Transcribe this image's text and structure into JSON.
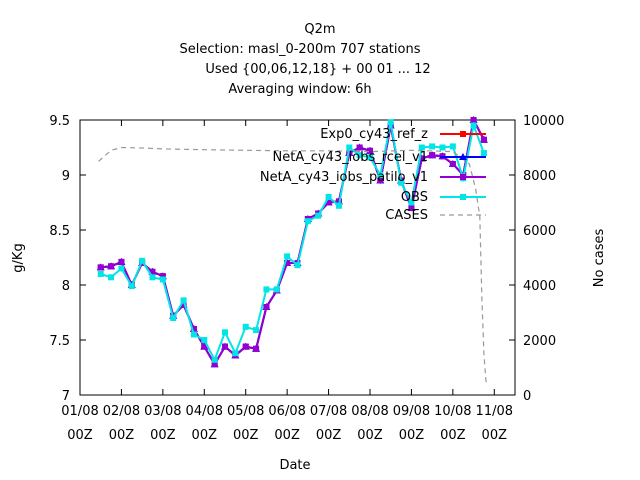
{
  "chart_data": {
    "type": "line",
    "title": "Q2m",
    "subtitle_lines": [
      "Selection: masl_0-200m    707 stations",
      "Used {00,06,12,18} + 00 01 ... 12",
      "Averaging window:  6h"
    ],
    "xlabel": "Date",
    "ylabel": "g/Kg",
    "y2label": "No cases",
    "xlim": [
      0,
      10.5
    ],
    "ylim": [
      7,
      9.5
    ],
    "y2lim": [
      0,
      10000
    ],
    "xticks": [
      {
        "x": 0,
        "line1": "01/08",
        "line2": "00Z"
      },
      {
        "x": 1,
        "line1": "02/08",
        "line2": "00Z"
      },
      {
        "x": 2,
        "line1": "03/08",
        "line2": "00Z"
      },
      {
        "x": 3,
        "line1": "04/08",
        "line2": "00Z"
      },
      {
        "x": 4,
        "line1": "05/08",
        "line2": "00Z"
      },
      {
        "x": 5,
        "line1": "06/08",
        "line2": "00Z"
      },
      {
        "x": 6,
        "line1": "07/08",
        "line2": "00Z"
      },
      {
        "x": 7,
        "line1": "08/08",
        "line2": "00Z"
      },
      {
        "x": 8,
        "line1": "09/08",
        "line2": "00Z"
      },
      {
        "x": 9,
        "line1": "10/08",
        "line2": "00Z"
      },
      {
        "x": 10,
        "line1": "11/08",
        "line2": "00Z"
      }
    ],
    "yticks": [
      "7",
      "7.5",
      "8",
      "8.5",
      "9",
      "9.5"
    ],
    "y2ticks": [
      "0",
      "2000",
      "4000",
      "6000",
      "8000",
      "10000"
    ],
    "legend_position": "top-right",
    "series": [
      {
        "name": "Exp0_cy43_ref_z",
        "color": "#ff0000",
        "marker": "filled-square",
        "axis": "y",
        "x": [
          0.5,
          0.75,
          1,
          1.25,
          1.5,
          1.75,
          2,
          2.25,
          2.5,
          2.75,
          3,
          3.25,
          3.5,
          3.75,
          4,
          4.25,
          4.5,
          4.75,
          5,
          5.25,
          5.5,
          5.75,
          6,
          6.25,
          6.5,
          6.75,
          7,
          7.25,
          7.5,
          7.75,
          8,
          8.25,
          8.5,
          8.75,
          9,
          9.25,
          9.5,
          9.75,
          10
        ],
        "values": [
          8.16,
          8.17,
          8.21,
          8.0,
          8.2,
          8.12,
          8.08,
          7.72,
          7.82,
          7.6,
          7.44,
          7.28,
          7.44,
          7.36,
          7.44,
          7.42,
          7.8,
          7.95,
          8.2,
          8.2,
          8.6,
          8.65,
          8.75,
          8.76,
          9.2,
          9.25,
          9.22,
          8.95,
          9.45,
          8.95,
          8.7,
          9.15,
          9.18,
          9.17,
          9.1,
          9.0,
          9.5,
          9.32,
          null
        ]
      },
      {
        "name": "NetA_cy43_iobs_rcel_v1",
        "color": "#0000ff",
        "marker": "filled-triangle",
        "axis": "y",
        "x": [
          0.5,
          0.75,
          1,
          1.25,
          1.5,
          1.75,
          2,
          2.25,
          2.5,
          2.75,
          3,
          3.25,
          3.5,
          3.75,
          4,
          4.25,
          4.5,
          4.75,
          5,
          5.25,
          5.5,
          5.75,
          6,
          6.25,
          6.5,
          6.75,
          7,
          7.25,
          7.5,
          7.75,
          8,
          8.25,
          8.5,
          8.75,
          9,
          9.25,
          9.5,
          9.75,
          10
        ],
        "values": [
          8.16,
          8.17,
          8.21,
          8.0,
          8.2,
          8.12,
          8.08,
          7.72,
          7.82,
          7.6,
          7.44,
          7.28,
          7.44,
          7.36,
          7.44,
          7.42,
          7.8,
          7.95,
          8.2,
          8.2,
          8.6,
          8.65,
          8.75,
          8.76,
          9.2,
          9.25,
          9.22,
          8.95,
          9.45,
          8.95,
          8.7,
          9.15,
          9.18,
          9.17,
          9.1,
          9.0,
          9.5,
          9.32,
          null
        ]
      },
      {
        "name": "NetA_cy43_iobs_patilo_v1",
        "color": "#9400d3",
        "marker": "filled-square",
        "axis": "y",
        "x": [
          0.5,
          0.75,
          1,
          1.25,
          1.5,
          1.75,
          2,
          2.25,
          2.5,
          2.75,
          3,
          3.25,
          3.5,
          3.75,
          4,
          4.25,
          4.5,
          4.75,
          5,
          5.25,
          5.5,
          5.75,
          6,
          6.25,
          6.5,
          6.75,
          7,
          7.25,
          7.5,
          7.75,
          8,
          8.25,
          8.5,
          8.75,
          9,
          9.25,
          9.5,
          9.75,
          10
        ],
        "values": [
          8.16,
          8.17,
          8.21,
          8.0,
          8.2,
          8.12,
          8.08,
          7.72,
          7.82,
          7.6,
          7.44,
          7.28,
          7.44,
          7.36,
          7.44,
          7.42,
          7.8,
          7.95,
          8.2,
          8.2,
          8.6,
          8.65,
          8.75,
          8.76,
          9.2,
          9.25,
          9.22,
          8.95,
          9.45,
          8.95,
          8.7,
          9.15,
          9.18,
          9.17,
          9.1,
          9.0,
          9.5,
          9.32,
          null
        ]
      },
      {
        "name": "OBS",
        "color": "#00e5e5",
        "marker": "filled-square",
        "axis": "y",
        "x": [
          0.5,
          0.75,
          1,
          1.25,
          1.5,
          1.75,
          2,
          2.25,
          2.5,
          2.75,
          3,
          3.25,
          3.5,
          3.75,
          4,
          4.25,
          4.5,
          4.75,
          5,
          5.25,
          5.5,
          5.75,
          6,
          6.25,
          6.5,
          6.75,
          7,
          7.25,
          7.5,
          7.75,
          8,
          8.25,
          8.5,
          8.75,
          9,
          9.25,
          9.5,
          9.75,
          10
        ],
        "values": [
          8.1,
          8.07,
          8.15,
          7.99,
          8.22,
          8.07,
          8.05,
          7.7,
          7.86,
          7.55,
          7.5,
          7.32,
          7.57,
          7.38,
          7.62,
          7.59,
          7.96,
          7.96,
          8.26,
          8.18,
          8.58,
          8.63,
          8.8,
          8.72,
          9.25,
          9.18,
          9.16,
          9.0,
          9.48,
          8.93,
          8.75,
          9.25,
          9.26,
          9.25,
          9.26,
          8.97,
          9.45,
          9.2,
          null
        ]
      },
      {
        "name": "CASES",
        "color": "#999999",
        "marker": "none",
        "dash": "dashed",
        "axis": "y2",
        "x": [
          0.45,
          0.75,
          1,
          1.5,
          2,
          3,
          4,
          5,
          6,
          7,
          8,
          9,
          9.4,
          9.55,
          9.65,
          9.7,
          9.75,
          9.8,
          9.85
        ],
        "values": [
          8500,
          8900,
          9000,
          8980,
          8950,
          8920,
          8900,
          8880,
          8880,
          8850,
          8900,
          8850,
          8400,
          7500,
          6500,
          3500,
          1500,
          500,
          400
        ]
      }
    ]
  }
}
